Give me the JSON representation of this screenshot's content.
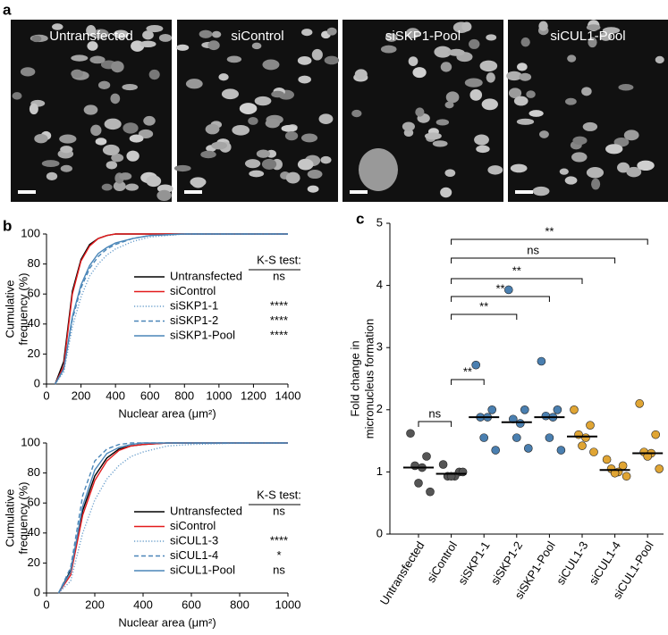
{
  "images": {
    "label": "a",
    "titles": [
      "Untransfected",
      "siControl",
      "siSKP1-Pool",
      "siCUL1-Pool"
    ]
  },
  "chart_data": [
    {
      "type": "line",
      "panel": "b",
      "ylabel": [
        "Cumulative",
        "frequency (%)"
      ],
      "xlabel": "Nuclear area (μm²)",
      "legend_header": "K-S test:",
      "x": [
        50,
        100,
        150,
        200,
        250,
        300,
        350,
        400,
        500,
        600,
        800,
        1000,
        1400
      ],
      "xlim": [
        0,
        1400
      ],
      "xticks": [
        0,
        200,
        400,
        600,
        800,
        1000,
        1200,
        1400
      ],
      "ylim": [
        0,
        100
      ],
      "yticks": [
        0,
        20,
        40,
        60,
        80,
        100
      ],
      "series": [
        {
          "name": "Untransfected",
          "color": "#000000",
          "style": "solid",
          "ks": "ns",
          "values": [
            0,
            15,
            62,
            83,
            93,
            97,
            99,
            100,
            100,
            100,
            100,
            100,
            100
          ]
        },
        {
          "name": "siControl",
          "color": "#e31a1c",
          "style": "solid",
          "values": [
            0,
            12,
            60,
            82,
            92,
            97,
            99,
            100,
            100,
            100,
            100,
            100,
            100
          ]
        },
        {
          "name": "siSKP1-1",
          "color": "#6a9fcc",
          "style": "dotted",
          "ks": "****",
          "values": [
            0,
            8,
            38,
            58,
            72,
            80,
            86,
            90,
            95,
            98,
            100,
            100,
            100
          ]
        },
        {
          "name": "siSKP1-2",
          "color": "#4a86b8",
          "style": "dashed",
          "ks": "****",
          "values": [
            0,
            10,
            43,
            64,
            77,
            85,
            90,
            93,
            97,
            99,
            100,
            100,
            100
          ]
        },
        {
          "name": "siSKP1-Pool",
          "color": "#4a86b8",
          "style": "solid",
          "ks": "****",
          "values": [
            0,
            10,
            45,
            66,
            79,
            87,
            91,
            94,
            97,
            99,
            100,
            100,
            100
          ]
        }
      ]
    },
    {
      "type": "line",
      "ylabel": [
        "Cumulative",
        "frequency (%)"
      ],
      "xlabel": "Nuclear area (μm²)",
      "legend_header": "K-S test:",
      "x": [
        50,
        100,
        150,
        200,
        250,
        300,
        350,
        400,
        500,
        600,
        800,
        1000
      ],
      "xlim": [
        0,
        1000
      ],
      "xticks": [
        0,
        200,
        400,
        600,
        800,
        1000
      ],
      "ylim": [
        0,
        100
      ],
      "yticks": [
        0,
        20,
        40,
        60,
        80,
        100
      ],
      "series": [
        {
          "name": "Untransfected",
          "color": "#000000",
          "style": "solid",
          "ks": "ns",
          "values": [
            0,
            15,
            55,
            78,
            90,
            96,
            98,
            99,
            100,
            100,
            100,
            100
          ]
        },
        {
          "name": "siControl",
          "color": "#e31a1c",
          "style": "solid",
          "values": [
            0,
            12,
            52,
            75,
            88,
            95,
            98,
            99,
            100,
            100,
            100,
            100
          ]
        },
        {
          "name": "siCUL1-3",
          "color": "#6a9fcc",
          "style": "dotted",
          "ks": "****",
          "values": [
            0,
            8,
            40,
            62,
            76,
            85,
            91,
            94,
            98,
            99,
            100,
            100
          ]
        },
        {
          "name": "siCUL1-4",
          "color": "#4a86b8",
          "style": "dashed",
          "ks": "*",
          "values": [
            0,
            17,
            65,
            88,
            96,
            99,
            100,
            100,
            100,
            100,
            100,
            100
          ]
        },
        {
          "name": "siCUL1-Pool",
          "color": "#4a86b8",
          "style": "solid",
          "ks": "ns",
          "values": [
            0,
            14,
            58,
            82,
            93,
            97,
            99,
            100,
            100,
            100,
            100,
            100
          ]
        }
      ]
    },
    {
      "type": "dot",
      "panel": "c",
      "ylabel": [
        "Fold change in",
        "micronucleus formation"
      ],
      "categories": [
        "Untransfected",
        "siControl",
        "siSKP1-1",
        "siSKP1-2",
        "siSKP1-Pool",
        "siCUL1-3",
        "siCUL1-4",
        "siCUL1-Pool"
      ],
      "colors": [
        "#555555",
        "#555555",
        "#4a7fb0",
        "#4a7fb0",
        "#4a7fb0",
        "#e0a534",
        "#e0a534",
        "#e0a534"
      ],
      "points": [
        [
          1.62,
          1.25,
          1.1,
          1.07,
          0.82,
          0.68
        ],
        [
          1.12,
          1.0,
          0.93,
          0.93,
          0.93,
          1.0
        ],
        [
          2.72,
          2.0,
          1.88,
          1.88,
          1.55,
          1.35
        ],
        [
          3.93,
          2.0,
          1.85,
          1.78,
          1.55,
          1.38
        ],
        [
          2.78,
          2.0,
          1.9,
          1.88,
          1.55,
          1.35
        ],
        [
          2.0,
          1.75,
          1.6,
          1.55,
          1.42,
          1.32
        ],
        [
          1.2,
          1.1,
          1.05,
          1.0,
          0.98,
          0.93
        ],
        [
          2.1,
          1.6,
          1.32,
          1.3,
          1.25,
          1.05
        ]
      ],
      "medians": [
        1.07,
        0.97,
        1.88,
        1.8,
        1.88,
        1.57,
        1.03,
        1.3
      ],
      "ylim": [
        0,
        5
      ],
      "yticks": [
        0,
        1,
        2,
        3,
        4,
        5
      ],
      "brackets": [
        {
          "label": "ns",
          "pair": [
            0,
            1
          ]
        },
        {
          "label": "**",
          "pair": [
            1,
            2
          ]
        },
        {
          "label": "**",
          "pair": [
            1,
            3
          ]
        },
        {
          "label": "**",
          "pair": [
            1,
            4
          ]
        },
        {
          "label": "**",
          "pair": [
            1,
            5
          ]
        },
        {
          "label": "ns",
          "pair": [
            1,
            6
          ]
        },
        {
          "label": "**",
          "pair": [
            1,
            7
          ]
        }
      ]
    }
  ]
}
